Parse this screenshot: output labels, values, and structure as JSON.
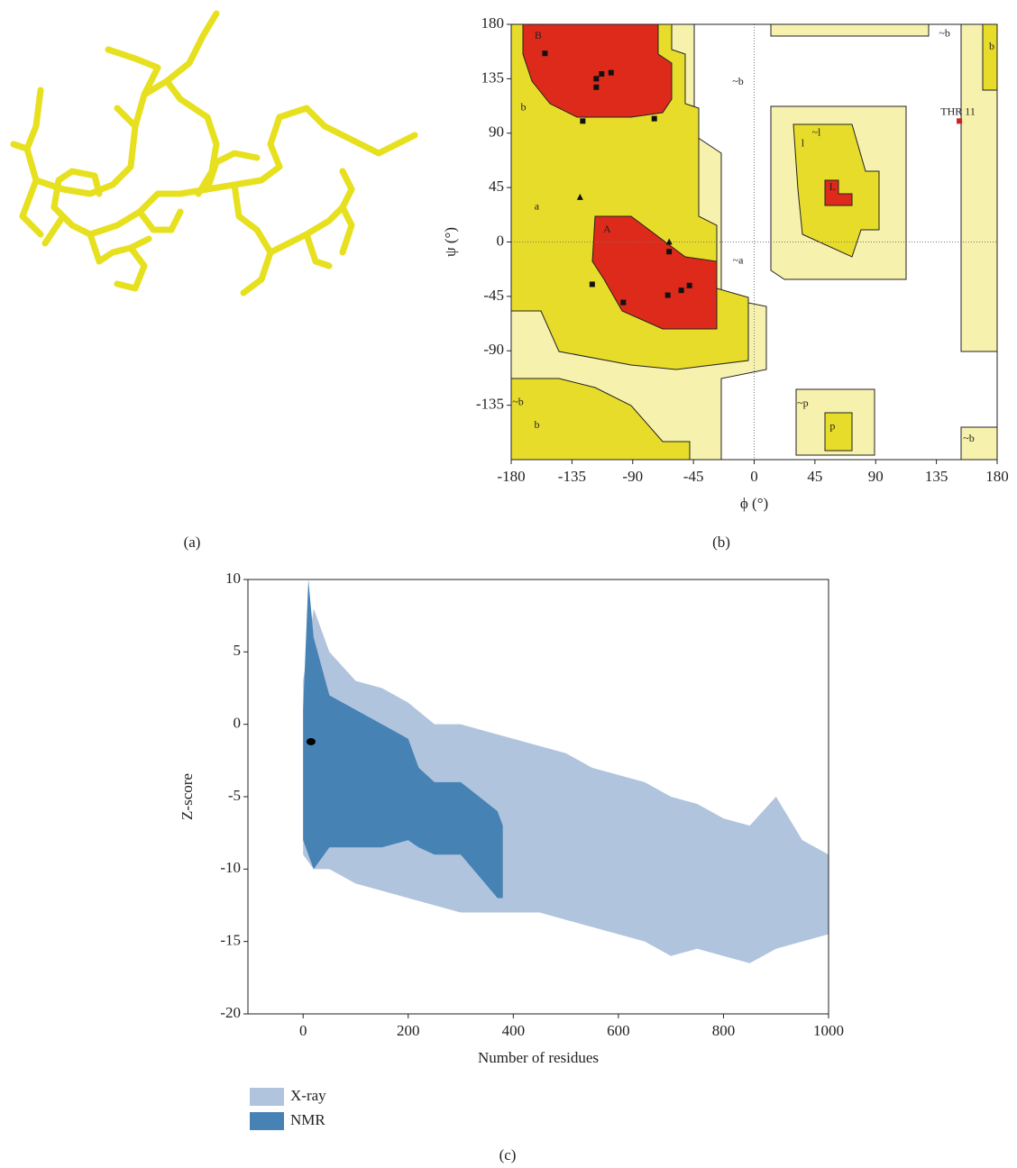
{
  "panel_labels": [
    "(a)",
    "(b)",
    "(c)"
  ],
  "chart_data": [
    {
      "type": "scatter",
      "xlabel": "ϕ (°)",
      "ylabel": "ψ (°)",
      "xlim": [
        -180,
        180
      ],
      "ylim": [
        -180,
        180
      ],
      "xticks": [
        -180,
        -135,
        -90,
        -45,
        0,
        45,
        90,
        135,
        180
      ],
      "yticks": [
        -135,
        -90,
        -45,
        0,
        45,
        90,
        135,
        180
      ],
      "series": [
        {
          "marker": "square",
          "color": "#111111",
          "x": [
            -155,
            -117,
            -113,
            -106,
            -117,
            -127,
            -74,
            -63,
            -120,
            -97,
            -64,
            -54,
            -48
          ],
          "y": [
            156,
            135,
            139,
            140,
            128,
            100,
            102,
            -8,
            -35,
            -50,
            -44,
            -40,
            -36
          ]
        },
        {
          "marker": "triangle",
          "color": "#111111",
          "x": [
            -129,
            -63
          ],
          "y": [
            37,
            0
          ]
        },
        {
          "marker": "square",
          "color": "#cc2222",
          "x": [
            152
          ],
          "y": [
            100
          ]
        }
      ],
      "annotations": [
        {
          "text": "B",
          "x": -160,
          "y": 170
        },
        {
          "text": "b",
          "x": -171,
          "y": 111
        },
        {
          "text": "a",
          "x": -161,
          "y": 29
        },
        {
          "text": "A",
          "x": -109,
          "y": 10
        },
        {
          "text": "~a",
          "x": -12,
          "y": -16
        },
        {
          "text": "~b",
          "x": -12,
          "y": 132
        },
        {
          "text": "~l",
          "x": 46,
          "y": 90
        },
        {
          "text": "l",
          "x": 36,
          "y": 81
        },
        {
          "text": "L",
          "x": 58,
          "y": 45
        },
        {
          "text": "~p",
          "x": 36,
          "y": -134
        },
        {
          "text": "p",
          "x": 58,
          "y": -153
        },
        {
          "text": "~b",
          "x": -175,
          "y": -133
        },
        {
          "text": "b",
          "x": -161,
          "y": -152
        },
        {
          "text": "~b",
          "x": 141,
          "y": 172
        },
        {
          "text": "b",
          "x": 176,
          "y": 161
        },
        {
          "text": "~b",
          "x": 159,
          "y": -163
        },
        {
          "text": "THR 11",
          "x": 151,
          "y": 107,
          "color": "#cc2222"
        }
      ]
    },
    {
      "type": "area",
      "xlabel": "Number of residues",
      "ylabel": "Z-score",
      "xlim": [
        -105,
        1000
      ],
      "ylim": [
        -20,
        10
      ],
      "xticks": [
        0,
        200,
        400,
        600,
        800,
        1000
      ],
      "yticks": [
        -20,
        -15,
        -10,
        -5,
        0,
        5,
        10
      ],
      "legend": "bottom-left",
      "series": [
        {
          "name": "X-ray",
          "color": "#b0c4de",
          "x": [
            0,
            20,
            50,
            100,
            150,
            200,
            250,
            300,
            350,
            400,
            450,
            500,
            550,
            600,
            650,
            700,
            750,
            800,
            850,
            900,
            950,
            1000
          ],
          "high": [
            3,
            8,
            5,
            3,
            2.5,
            1.5,
            0,
            0,
            -0.5,
            -1,
            -1.5,
            -2,
            -3,
            -3.5,
            -4,
            -5,
            -5.5,
            -6.5,
            -7,
            -5,
            -8,
            -9
          ],
          "low": [
            -9,
            -10,
            -10,
            -11,
            -11.5,
            -12,
            -12.5,
            -13,
            -13,
            -13,
            -13,
            -13.5,
            -14,
            -14.5,
            -15,
            -16,
            -15.5,
            -16,
            -16.5,
            -15.5,
            -15,
            -14.5
          ]
        },
        {
          "name": "NMR",
          "color": "#4682b4",
          "x": [
            0,
            10,
            20,
            50,
            100,
            150,
            200,
            220,
            250,
            300,
            370,
            380
          ],
          "high": [
            1,
            10,
            6,
            2,
            1,
            0,
            -1,
            -3,
            -4,
            -4,
            -6,
            -7
          ],
          "low": [
            -8,
            -9,
            -10,
            -8.5,
            -8.5,
            -8.5,
            -8,
            -8.5,
            -9,
            -9,
            -12,
            -12
          ]
        }
      ],
      "highlight": {
        "x": 15,
        "y": -1.2,
        "color": "#000000"
      }
    }
  ]
}
